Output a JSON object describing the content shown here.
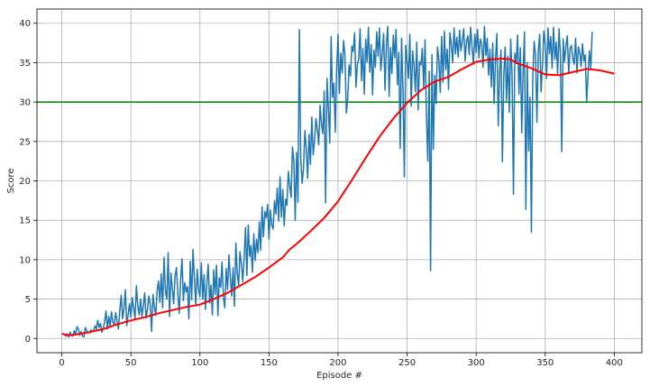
{
  "chart_data": {
    "type": "line",
    "title": "",
    "xlabel": "Episode #",
    "ylabel": "Score",
    "xlim": [
      -18,
      420
    ],
    "ylim": [
      -1.8,
      41.8
    ],
    "xticks": [
      0,
      50,
      100,
      150,
      200,
      250,
      300,
      350,
      400
    ],
    "yticks": [
      0,
      5,
      10,
      15,
      20,
      25,
      30,
      35,
      40
    ],
    "grid": true,
    "legend": "none",
    "threshold": {
      "y": 30,
      "color": "#008000"
    },
    "series": [
      {
        "role": "episode-score",
        "color": "#1f77b4",
        "values": [
          0.6,
          0.5,
          0.3,
          0.6,
          0.2,
          0.8,
          0.4,
          0.3,
          1.0,
          0.5,
          1.5,
          1.2,
          0.4,
          0.9,
          0.3,
          0.2,
          1.4,
          1.0,
          0.8,
          0.7,
          1.1,
          0.9,
          1.0,
          1.6,
          1.2,
          2.3,
          1.4,
          1.9,
          0.8,
          1.3,
          2.1,
          3.5,
          1.2,
          2.8,
          1.6,
          3.4,
          2.0,
          1.8,
          3.3,
          2.2,
          1.2,
          3.6,
          5.5,
          2.5,
          3.8,
          6.2,
          1.6,
          3.0,
          4.4,
          2.7,
          5.2,
          3.8,
          2.5,
          6.7,
          4.1,
          3.0,
          5.0,
          2.8,
          4.2,
          5.8,
          2.6,
          3.7,
          5.4,
          4.3,
          0.9,
          5.6,
          4.0,
          2.9,
          6.1,
          7.3,
          4.6,
          8.2,
          3.9,
          10.3,
          6.0,
          5.0,
          10.9,
          2.8,
          8.3,
          6.4,
          4.4,
          7.9,
          9.0,
          5.7,
          3.2,
          7.4,
          10.1,
          4.8,
          7.1,
          5.9,
          6.6,
          2.5,
          9.8,
          4.9,
          11.3,
          7.6,
          4.2,
          8.8,
          6.3,
          5.3,
          9.6,
          5.0,
          8.1,
          3.7,
          7.0,
          9.4,
          4.5,
          6.8,
          3.0,
          8.7,
          5.6,
          9.3,
          2.9,
          7.7,
          6.5,
          9.7,
          5.2,
          3.9,
          8.9,
          6.2,
          10.6,
          7.8,
          5.4,
          9.0,
          4.1,
          12.1,
          8.3,
          6.7,
          11.0,
          9.5,
          7.2,
          10.2,
          14.1,
          8.0,
          14.4,
          10.4,
          11.8,
          8.4,
          13.3,
          9.9,
          12.6,
          10.9,
          14.8,
          11.2,
          16.7,
          12.9,
          16.1,
          15.3,
          17.0,
          12.6,
          16.3,
          14.4,
          13.9,
          17.5,
          15.8,
          19.1,
          14.9,
          20.5,
          15.4,
          18.9,
          14.3,
          17.7,
          16.9,
          21.2,
          19.4,
          17.9,
          24.3,
          22.5,
          15.0,
          23.6,
          17.3,
          39.2,
          22.8,
          19.7,
          21.6,
          26.4,
          24.0,
          20.3,
          25.9,
          22.1,
          28.1,
          23.3,
          25.1,
          27.9,
          26.5,
          24.6,
          29.6,
          27.2,
          26.0,
          31.4,
          17.2,
          33.0,
          29.2,
          24.8,
          38.3,
          30.6,
          32.4,
          26.2,
          34.1,
          38.6,
          31.1,
          36.2,
          33.7,
          37.8,
          35.9,
          28.6,
          30.4,
          34.7,
          33.3,
          37.1,
          36.4,
          38.8,
          31.9,
          34.8,
          35.5,
          39.3,
          32.7,
          36.8,
          31.0,
          38.0,
          35.1,
          39.5,
          33.8,
          37.3,
          30.9,
          36.6,
          34.4,
          38.9,
          35.8,
          39.4,
          34.0,
          36.1,
          38.7,
          31.5,
          37.4,
          39.6,
          30.7,
          36.9,
          33.6,
          38.5,
          35.6,
          39.2,
          32.2,
          36.3,
          24.1,
          38.1,
          31.7,
          20.5,
          37.2,
          35.3,
          33.0,
          38.6,
          29.5,
          36.5,
          34.6,
          31.3,
          37.6,
          29.0,
          35.1,
          34.7,
          36.8,
          31.8,
          37.9,
          28.2,
          22.5,
          33.9,
          8.6,
          36.0,
          24.0,
          33.4,
          29.8,
          37.0,
          35.4,
          31.2,
          38.3,
          32.5,
          39.0,
          34.1,
          36.7,
          31.6,
          38.8,
          37.3,
          35.0,
          39.4,
          36.1,
          38.2,
          35.7,
          39.1,
          36.5,
          37.8,
          39.3,
          35.2,
          37.7,
          38.4,
          36.0,
          39.5,
          37.1,
          34.8,
          38.6,
          36.3,
          39.2,
          35.6,
          38.0,
          37.4,
          34.4,
          39.6,
          35.9,
          38.1,
          33.4,
          36.7,
          31.9,
          37.5,
          29.8,
          35.4,
          38.7,
          27.0,
          34.0,
          36.6,
          22.4,
          33.3,
          37.0,
          30.2,
          35.8,
          28.7,
          38.0,
          33.5,
          18.3,
          36.2,
          34.9,
          38.5,
          31.0,
          36.9,
          26.1,
          33.9,
          38.9,
          16.4,
          35.0,
          23.8,
          30.6,
          13.5,
          33.2,
          37.7,
          35.9,
          27.4,
          36.5,
          38.6,
          31.3,
          34.6,
          39.0,
          37.3,
          33.0,
          39.4,
          36.1,
          38.3,
          34.3,
          39.5,
          35.4,
          37.6,
          33.5,
          39.3,
          36.0,
          23.7,
          38.0,
          35.1,
          37.1,
          38.4,
          33.6,
          36.8,
          37.2,
          35.5,
          34.8,
          38.1,
          33.7,
          37.0,
          36.3,
          34.5,
          37.4,
          35.2,
          36.0,
          29.9,
          33.4,
          36.5,
          34.3,
          38.9
        ],
        "color_name": "blue"
      },
      {
        "role": "moving-average",
        "color": "#ff0000",
        "x": [
          0,
          5,
          10,
          20,
          30,
          40,
          50,
          60,
          70,
          80,
          90,
          100,
          110,
          120,
          130,
          140,
          150,
          160,
          165,
          170,
          180,
          190,
          200,
          210,
          220,
          230,
          240,
          250,
          260,
          270,
          280,
          290,
          300,
          310,
          320,
          325,
          330,
          340,
          350,
          360,
          370,
          380,
          390,
          400
        ],
        "values": [
          0.6,
          0.4,
          0.5,
          0.8,
          1.2,
          1.8,
          2.3,
          2.7,
          3.2,
          3.6,
          4.0,
          4.3,
          5.0,
          5.8,
          6.8,
          7.8,
          9.0,
          10.3,
          11.3,
          12.0,
          13.6,
          15.3,
          17.4,
          20.1,
          22.9,
          25.6,
          27.9,
          29.9,
          31.5,
          32.6,
          33.2,
          34.2,
          35.1,
          35.4,
          35.5,
          35.4,
          34.9,
          34.3,
          33.5,
          33.4,
          33.8,
          34.2,
          34.0,
          33.6
        ],
        "color_name": "red"
      }
    ]
  }
}
